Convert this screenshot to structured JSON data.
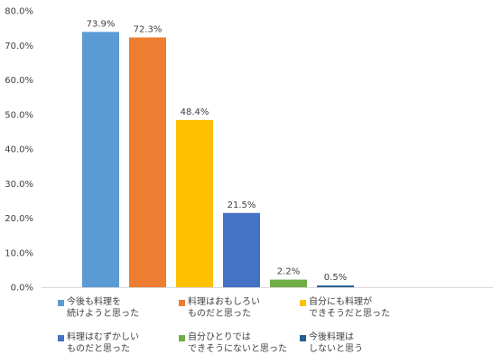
{
  "chart_data": {
    "type": "bar",
    "ylim": [
      0,
      80
    ],
    "y_ticks": [
      "0.0%",
      "10.0%",
      "20.0%",
      "30.0%",
      "40.0%",
      "50.0%",
      "60.0%",
      "70.0%",
      "80.0%"
    ],
    "grid": false,
    "legend_position": "bottom",
    "series": [
      {
        "name": "今後も料理を\n続けようと思った",
        "value": 73.9,
        "label": "73.9%",
        "color": "#5B9BD5"
      },
      {
        "name": "料理はおもしろい\nものだと思った",
        "value": 72.3,
        "label": "72.3%",
        "color": "#ED7D31"
      },
      {
        "name": "自分にも料理が\nできそうだと思った",
        "value": 48.4,
        "label": "48.4%",
        "color": "#FFC000"
      },
      {
        "name": "料理はむずかしい\nものだと思った",
        "value": 21.5,
        "label": "21.5%",
        "color": "#4472C4"
      },
      {
        "name": "自分ひとりでは\nできそうにないと思った",
        "value": 2.2,
        "label": "2.2%",
        "color": "#70AD47"
      },
      {
        "name": "今後料理は\nしないと思う",
        "value": 0.5,
        "label": "0.5%",
        "color": "#255E91"
      }
    ]
  }
}
